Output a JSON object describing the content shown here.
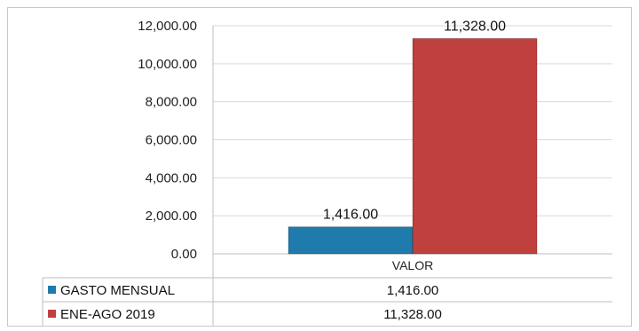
{
  "chart_data": {
    "type": "bar",
    "categories": [
      "VALOR"
    ],
    "series": [
      {
        "name": "GASTO MENSUAL",
        "values": [
          1416.0
        ],
        "value_label": "1,416.00",
        "color": "#1f7bab"
      },
      {
        "name": "ENE-AGO 2019",
        "values": [
          11328.0
        ],
        "value_label": "11,328.00",
        "color": "#c0403d"
      }
    ],
    "ylim": [
      0,
      12000
    ],
    "yticks": [
      0,
      2000,
      4000,
      6000,
      8000,
      10000,
      12000
    ],
    "ytick_labels": [
      "0.00",
      "2,000.00",
      "4,000.00",
      "6,000.00",
      "8,000.00",
      "10,000.00",
      "12,000.00"
    ],
    "grid": true,
    "legend": "data-table-below"
  }
}
